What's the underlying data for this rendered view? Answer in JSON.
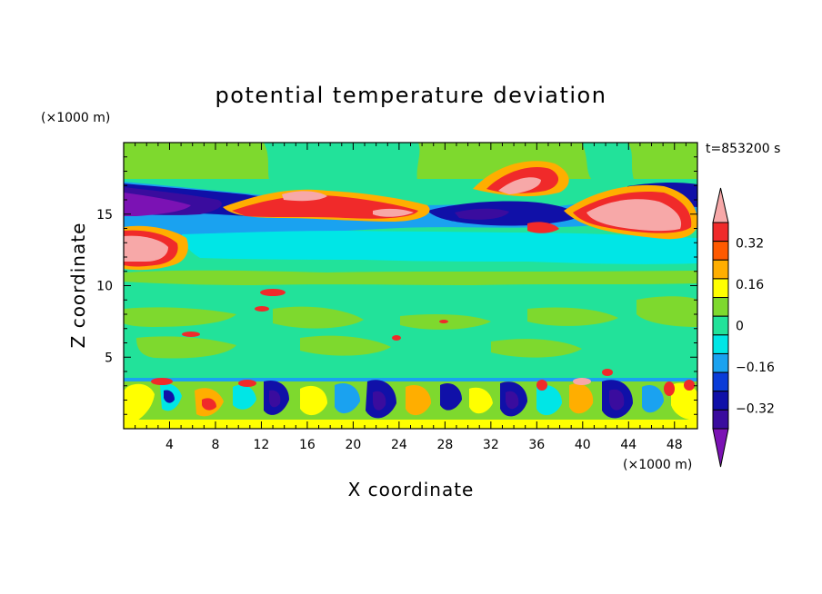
{
  "chart_data": {
    "type": "heatmap",
    "title": "potential temperature deviation",
    "xlabel": "X coordinate",
    "ylabel": "Z coordinate",
    "x_unit": "(×1000 m)",
    "y_unit": "(×1000 m)",
    "time_label": "t=853200 s",
    "xlim": [
      0,
      50
    ],
    "ylim": [
      0,
      20
    ],
    "x_ticks": [
      4,
      8,
      12,
      16,
      20,
      24,
      28,
      32,
      36,
      40,
      44,
      48
    ],
    "y_ticks": [
      5,
      10,
      15
    ],
    "colorbar": {
      "levels": [
        -0.4,
        -0.32,
        -0.24,
        -0.16,
        -0.08,
        0,
        0.08,
        0.16,
        0.24,
        0.32,
        0.4
      ],
      "tick_labels": [
        "0.32",
        "0.16",
        "0",
        "−0.16",
        "−0.32"
      ],
      "tick_values": [
        0.32,
        0.16,
        0,
        -0.16,
        -0.32
      ],
      "colors": [
        "#7b12b4",
        "#3a0c9e",
        "#1010a8",
        "#0a3cd8",
        "#1aa2f0",
        "#00e6e6",
        "#22e29a",
        "#7ed92e",
        "#ffff00",
        "#ffae00",
        "#ff5a00",
        "#f02a2a",
        "#f7a8a8"
      ]
    },
    "features": [
      {
        "x": [
          0,
          50
        ],
        "z": [
          0.3,
          3.4
        ],
        "value": "mixed -0.4 to 0.4 (convective layer)"
      },
      {
        "x": [
          0,
          50
        ],
        "z": [
          3.4,
          10
        ],
        "value": "≈0 with small positive patches"
      },
      {
        "x": [
          0,
          50
        ],
        "z": [
          10.5,
          13.5
        ],
        "value": "≈-0.08 to -0.16"
      },
      {
        "x": [
          0,
          4
        ],
        "z": [
          11.5,
          14
        ],
        "value": ">0.4"
      },
      {
        "x": [
          0,
          6
        ],
        "z": [
          15.5,
          17
        ],
        "value": "<-0.4"
      },
      {
        "x": [
          12,
          28
        ],
        "z": [
          14.5,
          16.5
        ],
        "value": "0.24 to 0.4"
      },
      {
        "x": [
          38,
          49
        ],
        "z": [
          14.5,
          16
        ],
        "value": ">0.4"
      },
      {
        "x": [
          32,
          38
        ],
        "z": [
          16.5,
          18
        ],
        "value": ">0.4"
      },
      {
        "x": [
          0,
          50
        ],
        "z": [
          17.5,
          20
        ],
        "value": "≈0 to 0.08"
      }
    ]
  }
}
